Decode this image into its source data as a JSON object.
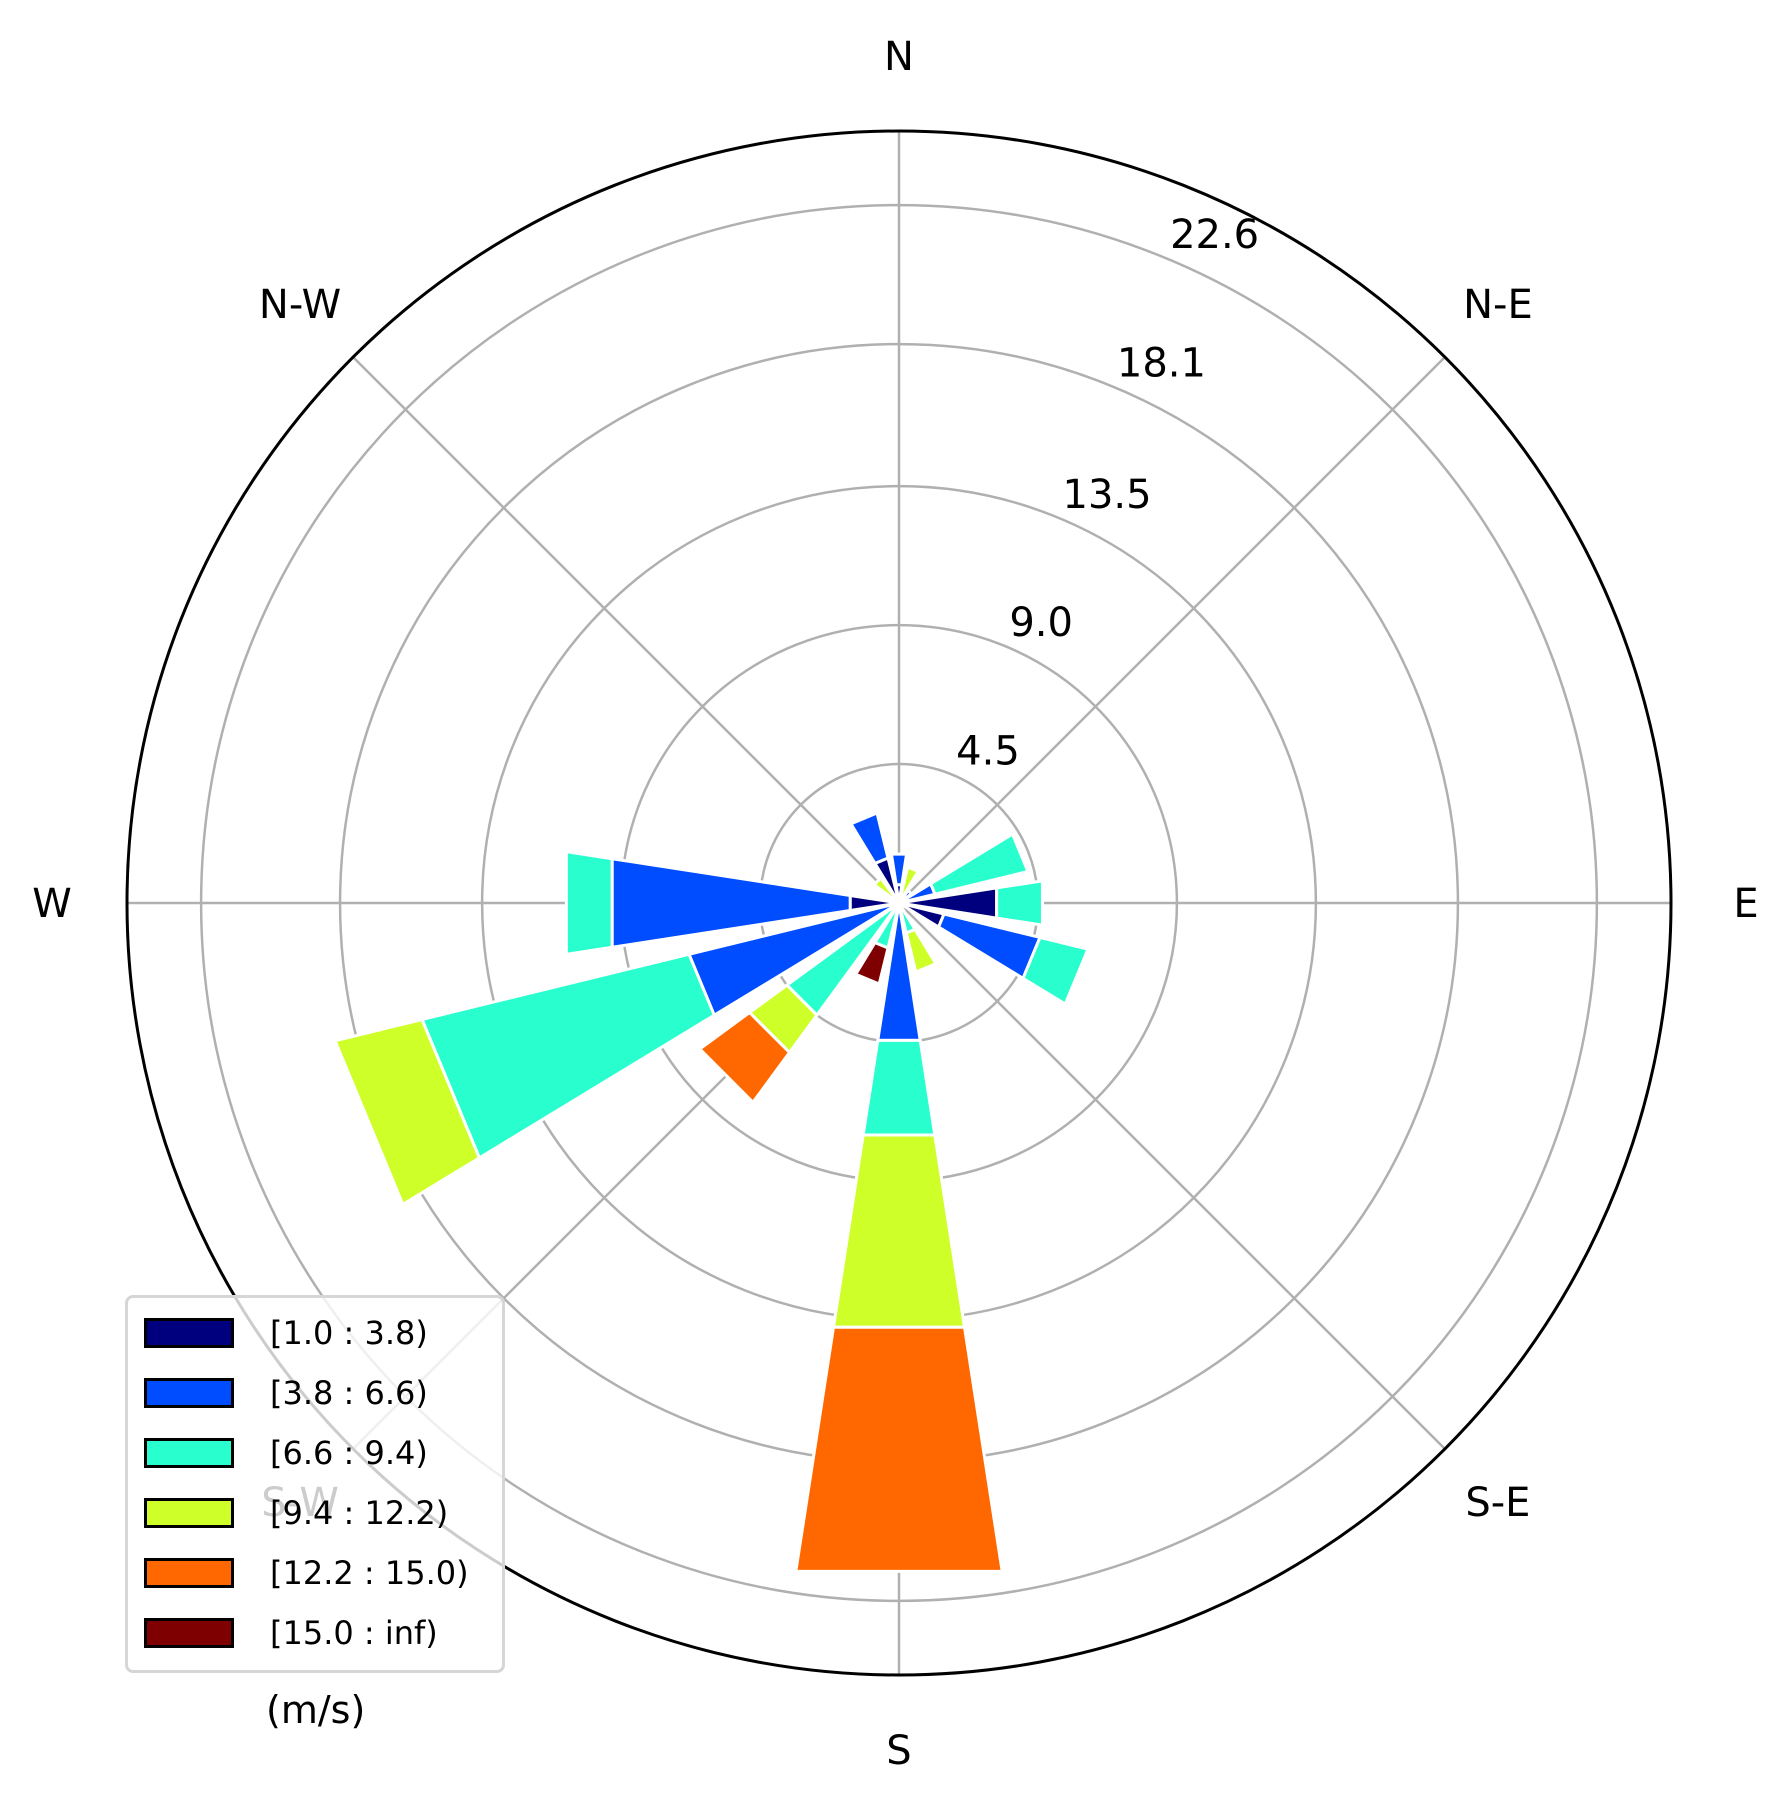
{
  "chart_data": {
    "type": "windrose",
    "rmax": 25,
    "radial_ticks": [
      "4.5",
      "9.0",
      "13.5",
      "18.1",
      "22.6"
    ],
    "radial_tick_values": [
      4.5,
      9.0,
      13.5,
      18.1,
      22.6
    ],
    "directions": [
      "N",
      "N-E",
      "E",
      "S-E",
      "S",
      "S-W",
      "W",
      "N-W"
    ],
    "sector_count": 16,
    "units": "(m/s)",
    "bins": [
      {
        "name": "[1.0 : 3.8)",
        "color": "#00007f"
      },
      {
        "name": "[3.8 : 6.6)",
        "color": "#004cff"
      },
      {
        "name": "[6.6 : 9.4)",
        "color": "#29ffce"
      },
      {
        "name": "[9.4 : 12.2)",
        "color": "#ceff29"
      },
      {
        "name": "[12.2 : 15.0)",
        "color": "#ff6800"
      },
      {
        "name": "[15.0 : inf)",
        "color": "#7f0000"
      }
    ],
    "sectors": [
      {
        "direction": 0,
        "values": [
          0.6,
          1.0,
          0,
          0,
          0,
          0
        ]
      },
      {
        "direction": 22.5,
        "values": [
          0,
          0,
          0,
          1.2,
          0,
          0
        ]
      },
      {
        "direction": 45,
        "values": [
          0,
          0.5,
          0,
          0,
          0,
          0
        ]
      },
      {
        "direction": 67.5,
        "values": [
          0,
          1.2,
          3.1,
          0,
          0,
          0
        ]
      },
      {
        "direction": 90,
        "values": [
          3.2,
          0,
          1.5,
          0,
          0,
          0
        ]
      },
      {
        "direction": 112.5,
        "values": [
          1.5,
          3.2,
          1.6,
          0,
          0,
          0
        ]
      },
      {
        "direction": 135,
        "values": [
          0,
          0,
          0,
          0,
          0,
          0
        ]
      },
      {
        "direction": 157.5,
        "values": [
          0,
          0,
          1.0,
          1.3,
          0,
          0
        ]
      },
      {
        "direction": 180,
        "values": [
          0,
          4.5,
          3.1,
          6.3,
          8.0,
          0
        ]
      },
      {
        "direction": 202.5,
        "values": [
          0,
          0,
          1.5,
          0,
          0,
          1.2
        ]
      },
      {
        "direction": 225,
        "values": [
          0,
          0,
          4.5,
          1.5,
          2.0,
          0
        ]
      },
      {
        "direction": 247.5,
        "values": [
          0,
          7.0,
          8.9,
          2.9,
          0,
          0
        ]
      },
      {
        "direction": 270,
        "values": [
          1.6,
          7.8,
          1.5,
          0,
          0,
          0
        ]
      },
      {
        "direction": 292.5,
        "values": [
          0,
          0,
          0,
          0,
          0,
          0
        ]
      },
      {
        "direction": 315,
        "values": [
          0,
          0,
          0,
          1.0,
          0,
          0
        ]
      },
      {
        "direction": 337.5,
        "values": [
          1.5,
          1.5,
          0,
          0,
          0,
          0
        ]
      }
    ]
  }
}
